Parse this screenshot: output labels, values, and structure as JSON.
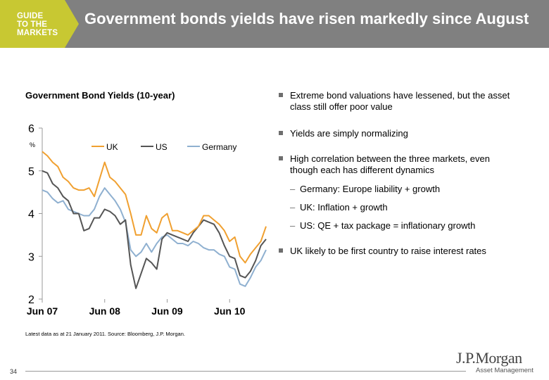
{
  "header": {
    "logo_lines": [
      "GUIDE",
      "TO THE",
      "MARKETS"
    ],
    "title": "Government bonds yields have risen markedly since August"
  },
  "chart_title": "Government Bond Yields (10-year)",
  "source": "Latest data as at 21 January 2011. Source: Bloomberg, J.P. Morgan.",
  "bullets": [
    {
      "text": "Extreme bond valuations have lessened, but the asset class still offer poor value"
    },
    {
      "text": "Yields are simply normalizing"
    },
    {
      "text": "High correlation between the three markets, even though each has different dynamics"
    },
    {
      "text": "UK likely to be first country to raise interest rates"
    }
  ],
  "sub_bullets": [
    {
      "dash": "–",
      "text": "Germany: Europe liability + growth"
    },
    {
      "dash": "–",
      "text": "UK: Inflation + growth"
    },
    {
      "dash": "–",
      "text": "US: QE + tax package = inflationary growth"
    }
  ],
  "footer": {
    "page_number": "34",
    "brand": "J.P.Morgan",
    "brand_sub": "Asset Management"
  },
  "colors": {
    "header_bg": "#808080",
    "logo_bg": "#c8c832",
    "uk": "#f0a030",
    "us": "#555555",
    "germany": "#8fb0d0"
  },
  "chart_data": {
    "type": "line",
    "ylabel": "%",
    "ylim": [
      2,
      6
    ],
    "yticks": [
      2,
      3,
      4,
      5,
      6
    ],
    "x_tick_labels": [
      "Jun 07",
      "Jun 08",
      "Jun 09",
      "Jun 10"
    ],
    "x_tick_positions": [
      0,
      12,
      24,
      36
    ],
    "xlim": [
      0,
      43
    ],
    "legend_position": "top",
    "grid": false,
    "series": [
      {
        "name": "UK",
        "color": "#f0a030",
        "x": [
          0,
          1,
          2,
          3,
          4,
          5,
          6,
          7,
          8,
          9,
          10,
          11,
          12,
          13,
          14,
          15,
          16,
          17,
          18,
          19,
          20,
          21,
          22,
          23,
          24,
          25,
          26,
          27,
          28,
          29,
          30,
          31,
          32,
          33,
          34,
          35,
          36,
          37,
          38,
          39,
          40,
          41,
          42,
          43
        ],
        "values": [
          5.45,
          5.35,
          5.2,
          5.1,
          4.85,
          4.75,
          4.6,
          4.55,
          4.55,
          4.6,
          4.4,
          4.8,
          5.2,
          4.85,
          4.75,
          4.6,
          4.45,
          4.0,
          3.5,
          3.5,
          3.95,
          3.65,
          3.55,
          3.9,
          4.0,
          3.6,
          3.6,
          3.55,
          3.5,
          3.6,
          3.7,
          3.95,
          3.95,
          3.85,
          3.75,
          3.6,
          3.35,
          3.45,
          3.0,
          2.85,
          3.05,
          3.2,
          3.35,
          3.7
        ]
      },
      {
        "name": "US",
        "color": "#555555",
        "x": [
          0,
          1,
          2,
          3,
          4,
          5,
          6,
          7,
          8,
          9,
          10,
          11,
          12,
          13,
          14,
          15,
          16,
          17,
          18,
          19,
          20,
          21,
          22,
          23,
          24,
          25,
          26,
          27,
          28,
          29,
          30,
          31,
          32,
          33,
          34,
          35,
          36,
          37,
          38,
          39,
          40,
          41,
          42,
          43
        ],
        "values": [
          5.0,
          4.95,
          4.7,
          4.6,
          4.4,
          4.3,
          4.0,
          4.0,
          3.6,
          3.65,
          3.9,
          3.9,
          4.1,
          4.05,
          3.95,
          3.75,
          3.85,
          2.8,
          2.25,
          2.6,
          2.95,
          2.85,
          2.7,
          3.4,
          3.55,
          3.5,
          3.45,
          3.4,
          3.35,
          3.55,
          3.7,
          3.85,
          3.8,
          3.75,
          3.55,
          3.25,
          3.0,
          2.95,
          2.55,
          2.5,
          2.65,
          2.9,
          3.25,
          3.4
        ]
      },
      {
        "name": "Germany",
        "color": "#8fb0d0",
        "x": [
          0,
          1,
          2,
          3,
          4,
          5,
          6,
          7,
          8,
          9,
          10,
          11,
          12,
          13,
          14,
          15,
          16,
          17,
          18,
          19,
          20,
          21,
          22,
          23,
          24,
          25,
          26,
          27,
          28,
          29,
          30,
          31,
          32,
          33,
          34,
          35,
          36,
          37,
          38,
          39,
          40,
          41,
          42,
          43
        ],
        "values": [
          4.55,
          4.5,
          4.35,
          4.25,
          4.3,
          4.1,
          4.05,
          4.0,
          3.95,
          3.95,
          4.1,
          4.4,
          4.6,
          4.45,
          4.3,
          4.1,
          3.8,
          3.15,
          3.0,
          3.1,
          3.3,
          3.1,
          3.3,
          3.45,
          3.5,
          3.4,
          3.3,
          3.3,
          3.25,
          3.35,
          3.3,
          3.2,
          3.15,
          3.15,
          3.05,
          3.0,
          2.75,
          2.7,
          2.35,
          2.3,
          2.5,
          2.75,
          2.9,
          3.15
        ]
      }
    ]
  }
}
